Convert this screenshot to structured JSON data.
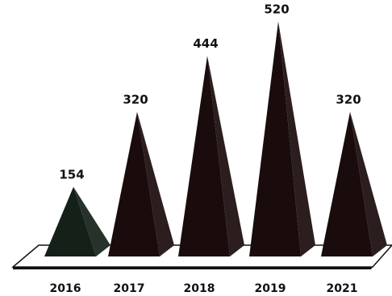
{
  "chart_data": {
    "type": "bar",
    "style": "3d-pyramid",
    "categories": [
      "2016",
      "2017",
      "2018",
      "2019",
      "2021"
    ],
    "values": [
      154,
      320,
      444,
      520,
      320
    ],
    "title": "",
    "xlabel": "",
    "ylabel": "",
    "ylim": [
      0,
      540
    ],
    "grid": false,
    "legend": "none",
    "colors": {
      "pyramids": [
        "#142018",
        "#1a0c0c",
        "#1a0c0c",
        "#1a0c0c",
        "#1a0c0c"
      ],
      "floor_fill": "#ffffff",
      "floor_stroke": "#111111"
    }
  }
}
